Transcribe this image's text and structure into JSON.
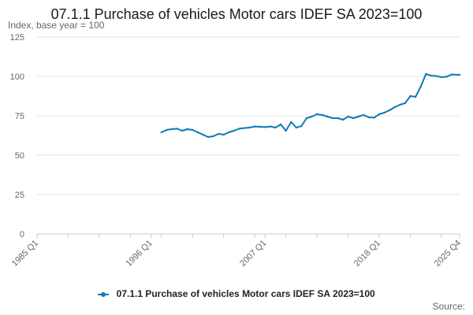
{
  "chart_data": {
    "type": "line",
    "title": "07.1.1 Purchase of vehicles Motor cars IDEF SA 2023=100",
    "subtitle": "Index, base year = 100",
    "ylabel": "",
    "xlabel": "",
    "ylim": [
      0,
      125
    ],
    "yticks": [
      0,
      25,
      50,
      75,
      100,
      125
    ],
    "xticks": [
      "1985 Q1",
      "1996 Q1",
      "2007 Q1",
      "2018 Q1",
      "2025 Q4"
    ],
    "grid": true,
    "legend_position": "bottom",
    "source_label": "Source:",
    "series": [
      {
        "name": "07.1.1 Purchase of vehicles Motor cars IDEF SA 2023=100",
        "color": "#0f7ab8",
        "x": [
          "1997 Q1",
          "1997 Q3",
          "1998 Q1",
          "1998 Q3",
          "1999 Q1",
          "1999 Q3",
          "2000 Q1",
          "2000 Q3",
          "2001 Q1",
          "2001 Q3",
          "2002 Q1",
          "2002 Q3",
          "2003 Q1",
          "2003 Q3",
          "2004 Q1",
          "2004 Q3",
          "2005 Q1",
          "2005 Q3",
          "2006 Q1",
          "2006 Q3",
          "2007 Q1",
          "2007 Q3",
          "2008 Q1",
          "2008 Q3",
          "2009 Q1",
          "2009 Q3",
          "2010 Q1",
          "2010 Q3",
          "2011 Q1",
          "2011 Q3",
          "2012 Q1",
          "2012 Q3",
          "2013 Q1",
          "2013 Q3",
          "2014 Q1",
          "2014 Q3",
          "2015 Q1",
          "2015 Q3",
          "2016 Q1",
          "2016 Q3",
          "2017 Q1",
          "2017 Q3",
          "2018 Q1",
          "2018 Q3",
          "2019 Q1",
          "2019 Q3",
          "2020 Q1",
          "2020 Q3",
          "2021 Q1",
          "2021 Q3",
          "2022 Q1",
          "2022 Q3",
          "2023 Q1",
          "2023 Q3",
          "2024 Q1",
          "2024 Q3",
          "2025 Q1",
          "2025 Q4"
        ],
        "values": [
          64.5,
          66,
          66.5,
          66.8,
          65.5,
          66.5,
          66,
          64.5,
          63,
          61.5,
          62,
          63.5,
          63,
          64.5,
          65.5,
          66.8,
          67.2,
          67.5,
          68.2,
          68,
          67.8,
          68.2,
          67.5,
          69.5,
          65.5,
          71,
          67.5,
          68.5,
          73.5,
          74.5,
          76,
          75.5,
          74.5,
          73.5,
          73.5,
          72.5,
          74.5,
          73.5,
          74.5,
          75.5,
          74,
          73.8,
          76,
          77,
          78.5,
          80.5,
          82,
          83,
          87.5,
          87,
          93.5,
          101.5,
          100.5,
          100.2,
          99.5,
          99.8,
          101.2,
          101
        ]
      }
    ]
  }
}
